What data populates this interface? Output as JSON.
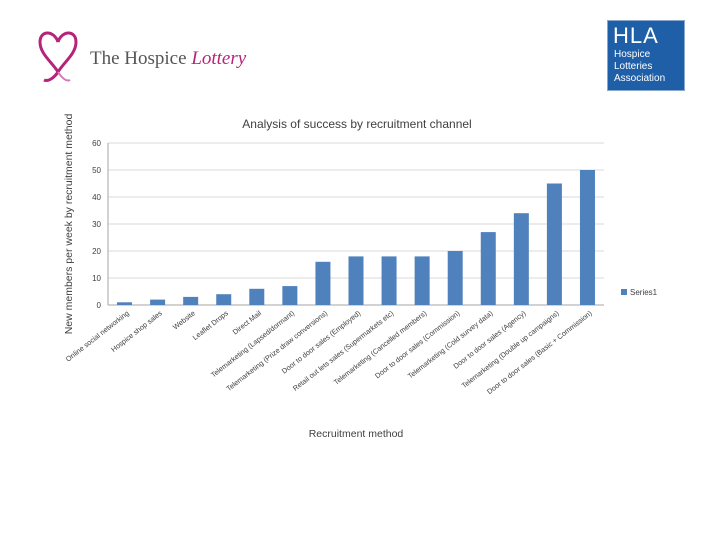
{
  "logos": {
    "left": {
      "text": "The Hospice ",
      "accent": "Lottery",
      "icon": "heart-ribbon-icon",
      "color": "#b5247a"
    },
    "right": {
      "abbr": "HLA",
      "lines": [
        "Hospice",
        "Lotteries",
        "Association"
      ],
      "color": "#1f5fa8"
    }
  },
  "chart_data": {
    "type": "bar",
    "title": "Analysis of success by recruitment channel",
    "xlabel": "Recruitment method",
    "ylabel": "New members per week by recruitment method",
    "ylim": [
      0,
      60
    ],
    "yticks": [
      0,
      10,
      20,
      30,
      40,
      50,
      60
    ],
    "grid": true,
    "legend_position": "right",
    "categories": [
      "Online social networking",
      "Hospice shop sales",
      "Website",
      "Leaflet Drops",
      "Direct Mail",
      "Telemarketing (Lapsed/dormant)",
      "Telemarketing (Prize draw conversions)",
      "Door to door sales (Employed)",
      "Retail out lets sales (Supermarkets etc)",
      "Telemarketing (Cancelled members)",
      "Door to door sales (Commission)",
      "Telemarketing (Cold survey data)",
      "Door to door sales (Agency)",
      "Telemarketing (Double up campaigns)",
      "Door to door sales (Basic + Commission)"
    ],
    "series": [
      {
        "name": "Series1",
        "color": "#4f81bd",
        "values": [
          1,
          2,
          3,
          4,
          6,
          7,
          16,
          18,
          18,
          18,
          20,
          27,
          34,
          45,
          50
        ]
      }
    ]
  }
}
